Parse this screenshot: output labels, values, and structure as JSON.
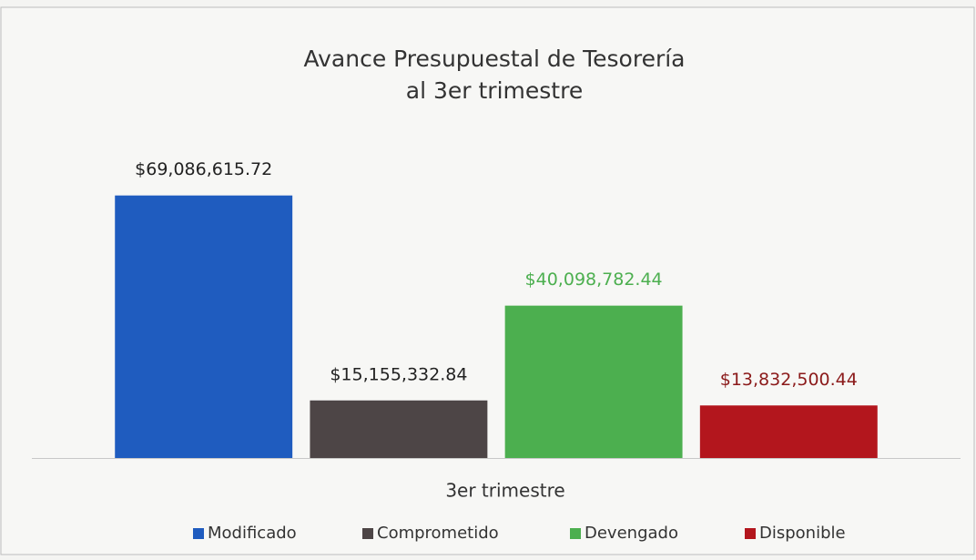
{
  "chart_data": {
    "type": "bar",
    "title": [
      "Avance Presupuestal de Tesorería",
      "al 3er trimestre"
    ],
    "categories": [
      "3er trimestre"
    ],
    "series": [
      {
        "name": "Modificado",
        "color": "#1f5cbf",
        "label_color": "#222222",
        "values": [
          69086615.72
        ],
        "value_labels": [
          "$69,086,615.72"
        ]
      },
      {
        "name": "Comprometido",
        "color": "#4d4546",
        "label_color": "#222222",
        "values": [
          15155332.84
        ],
        "value_labels": [
          "$15,155,332.84"
        ]
      },
      {
        "name": "Devengado",
        "color": "#4caf4f",
        "label_color": "#4caf4f",
        "values": [
          40098782.44
        ],
        "value_labels": [
          "$40,098,782.44"
        ]
      },
      {
        "name": "Disponible",
        "color": "#b3161d",
        "label_color": "#8b1a1a",
        "values": [
          13832500.44
        ],
        "value_labels": [
          "$13,832,500.44"
        ]
      }
    ],
    "ylim": [
      0,
      75000000
    ],
    "legend": "bottom"
  }
}
